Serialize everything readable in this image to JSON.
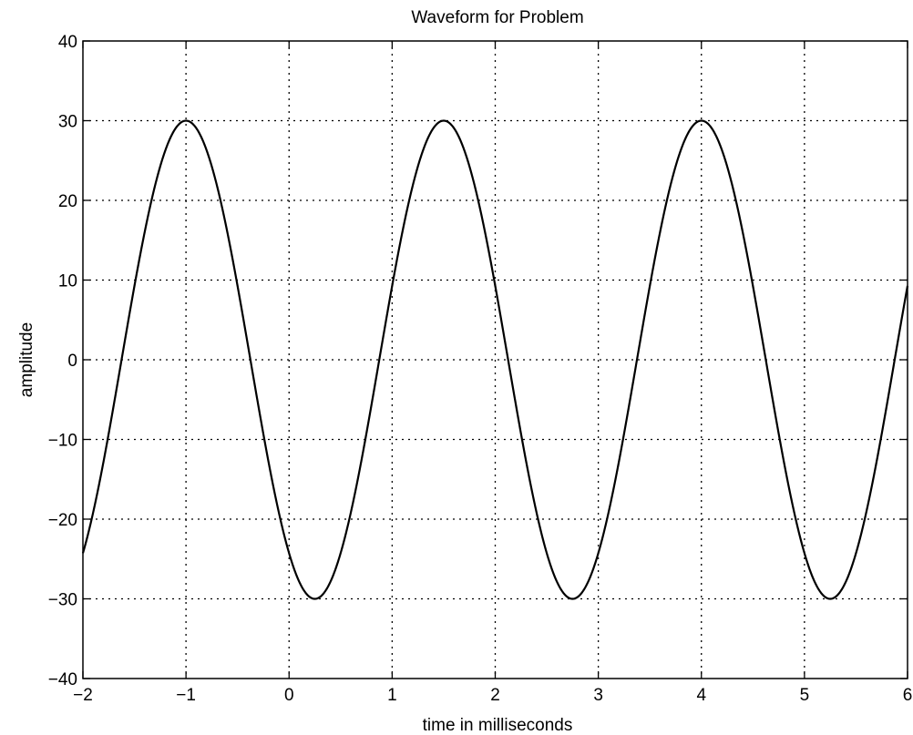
{
  "chart_data": {
    "type": "line",
    "title": "Waveform for Problem",
    "xlabel": "time in milliseconds",
    "ylabel": "amplitude",
    "xlim": [
      -2,
      6
    ],
    "ylim": [
      -40,
      40
    ],
    "x_ticks": [
      -2,
      -1,
      0,
      1,
      2,
      3,
      4,
      5,
      6
    ],
    "y_ticks": [
      -40,
      -30,
      -20,
      -10,
      0,
      10,
      20,
      30,
      40
    ],
    "x_tick_labels": [
      "−2",
      "−1",
      "0",
      "1",
      "2",
      "3",
      "4",
      "5",
      "6"
    ],
    "y_tick_labels": [
      "−40",
      "−30",
      "−20",
      "−10",
      "0",
      "10",
      "20",
      "30",
      "40"
    ],
    "grid": true,
    "series": [
      {
        "amplitude": 30,
        "period_ms": 2.5,
        "peak_times_ms": [
          -1,
          1.5,
          4
        ],
        "trough_times_ms": [
          0.25,
          2.75,
          5.25
        ],
        "x": [
          -2,
          -1.75,
          -1.5,
          -1.25,
          -1,
          -0.75,
          -0.5,
          -0.25,
          0,
          0.25,
          0.5,
          0.75,
          1,
          1.25,
          1.5,
          1.75,
          2,
          2.25,
          2.5,
          2.75,
          3,
          3.25,
          3.5,
          3.75,
          4,
          4.25,
          4.5,
          4.75,
          5,
          5.25,
          5.5,
          5.75,
          6
        ],
        "values": [
          -24.3,
          -9.3,
          9.3,
          24.3,
          30,
          24.3,
          9.3,
          -9.3,
          -24.3,
          -30,
          -24.3,
          -9.3,
          9.3,
          24.3,
          30,
          24.3,
          9.3,
          -9.3,
          -24.3,
          -30,
          -24.3,
          -9.3,
          9.3,
          24.3,
          30,
          24.3,
          9.3,
          -9.3,
          -24.3,
          -30,
          -24.3,
          -9.3,
          9.3
        ]
      }
    ]
  }
}
